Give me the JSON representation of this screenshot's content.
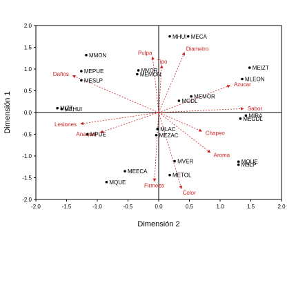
{
  "chart_data": {
    "type": "scatter",
    "title": "",
    "xlabel": "Dimensión 2",
    "ylabel": "Dimensión 1",
    "xlim": [
      -2.0,
      2.0
    ],
    "ylim": [
      -2.0,
      2.0
    ],
    "xticks": [
      "-2.0",
      "-1.5",
      "-1.0",
      "-0.5",
      "0.0",
      "0.5",
      "1.0",
      "1.5",
      "2.0"
    ],
    "yticks": [
      "2.0",
      "1.5",
      "1.0",
      "0.5",
      "0.0",
      "-0.5",
      "-1.0",
      "-1.5",
      "-2.0"
    ],
    "xtick_values": [
      -2.0,
      -1.5,
      -1.0,
      -0.5,
      0.0,
      0.5,
      1.0,
      1.5,
      2.0
    ],
    "ytick_values": [
      2.0,
      1.5,
      1.0,
      0.5,
      0.0,
      -0.5,
      -1.0,
      -1.5,
      -2.0
    ],
    "grid": false,
    "vector_color": "#cc2222",
    "point_color": "#000000",
    "points": [
      {
        "label": "MHUI",
        "x": 0.18,
        "y": 1.75
      },
      {
        "label": "MECA",
        "x": 0.48,
        "y": 1.75
      },
      {
        "label": "MMON",
        "x": -1.18,
        "y": 1.32
      },
      {
        "label": "MEPUE",
        "x": -1.26,
        "y": 0.95
      },
      {
        "label": "MESLP",
        "x": -1.26,
        "y": 0.74
      },
      {
        "label": "MVOR",
        "x": -0.33,
        "y": 0.97
      },
      {
        "label": "MEMON",
        "x": -0.35,
        "y": 0.88
      },
      {
        "label": "MEIZT",
        "x": 1.48,
        "y": 1.03
      },
      {
        "label": "MLEON",
        "x": 1.36,
        "y": 0.77
      },
      {
        "label": "MEMOR",
        "x": 0.53,
        "y": 0.37
      },
      {
        "label": "MGDL",
        "x": 0.33,
        "y": 0.27
      },
      {
        "label": "MIZT",
        "x": -1.65,
        "y": 0.1
      },
      {
        "label": "MEHUI",
        "x": -1.58,
        "y": 0.08
      },
      {
        "label": "MIRA",
        "x": 1.42,
        "y": -0.07
      },
      {
        "label": "MEGDL",
        "x": 1.33,
        "y": -0.14
      },
      {
        "label": "MLAC",
        "x": -0.02,
        "y": -0.38
      },
      {
        "label": "MEZAC",
        "x": -0.04,
        "y": -0.52
      },
      {
        "label": "MPUE",
        "x": -1.16,
        "y": -0.5
      },
      {
        "label": "MVER",
        "x": 0.26,
        "y": -1.12
      },
      {
        "label": "MQUE",
        "x": 1.3,
        "y": -1.13
      },
      {
        "label": "MSLP",
        "x": 1.3,
        "y": -1.2
      },
      {
        "label": "MEECA",
        "x": -0.55,
        "y": -1.35
      },
      {
        "label": "METOL",
        "x": 0.18,
        "y": -1.44
      },
      {
        "label": "MQUE",
        "x": -0.85,
        "y": -1.6
      }
    ],
    "vectors": [
      {
        "label": "Pulpa",
        "x": -0.1,
        "y": 1.28
      },
      {
        "label": "Tipo",
        "x": 0.05,
        "y": 1.08
      },
      {
        "label": "Diametro",
        "x": 0.42,
        "y": 1.38
      },
      {
        "label": "Daños",
        "x": -1.4,
        "y": 0.85
      },
      {
        "label": "Azucar",
        "x": 1.16,
        "y": 0.62
      },
      {
        "label": "Sabor",
        "x": 1.38,
        "y": 0.09
      },
      {
        "label": "Lesiones",
        "x": -1.27,
        "y": -0.26
      },
      {
        "label": "Anaquel",
        "x": -0.95,
        "y": -0.46
      },
      {
        "label": "Chapeo",
        "x": 0.7,
        "y": -0.43
      },
      {
        "label": "Aroma",
        "x": 0.84,
        "y": -0.92
      },
      {
        "label": "Firmeza",
        "x": -0.07,
        "y": -1.58
      },
      {
        "label": "Color",
        "x": 0.37,
        "y": -1.75
      }
    ]
  }
}
